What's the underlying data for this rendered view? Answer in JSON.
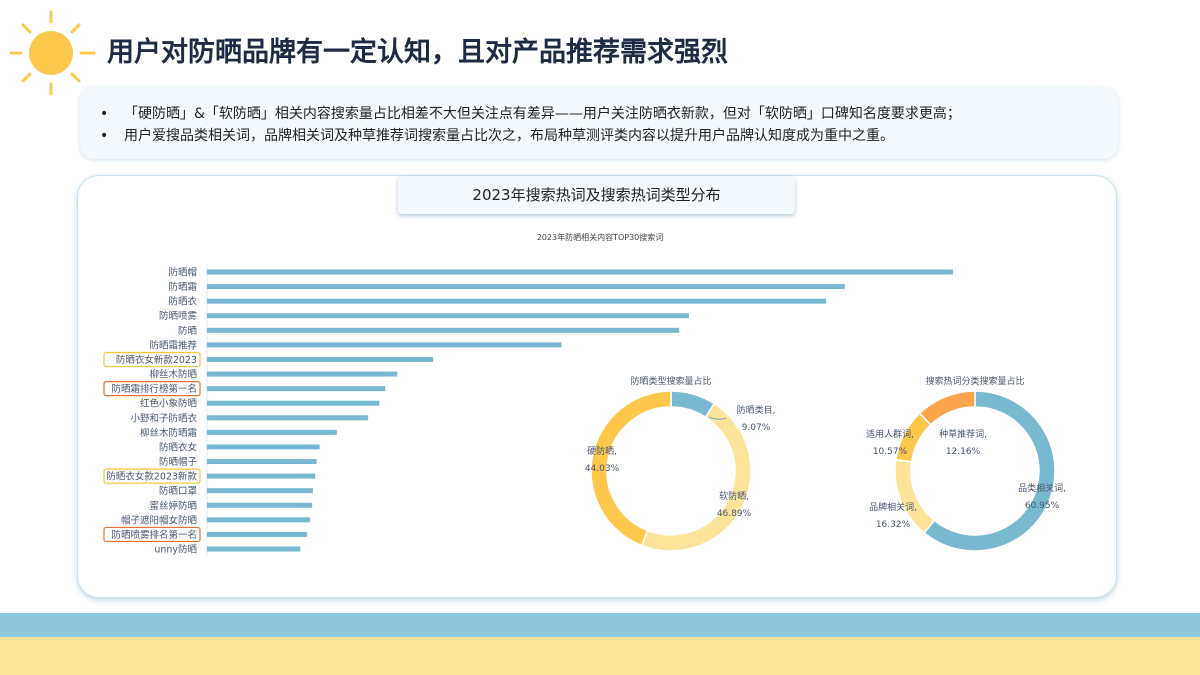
{
  "header": {
    "title": "用户对防晒品牌有一定认知，且对产品推荐需求强烈"
  },
  "summary": {
    "points": [
      "「硬防晒」&「软防晒」相关内容搜索量占比相差不大但关注点有差异——用户关注防晒衣新款，但对「软防晒」口碑知名度要求更高；",
      "用户爱搜品类相关词，品牌相关词及种草推荐词搜索量占比次之，布局种草测评类内容以提升用户品牌认知度成为重中之重。"
    ]
  },
  "panel": {
    "title": "2023年搜索热词及搜索热词类型分布"
  },
  "colors": {
    "bar": "#79b8d1",
    "blue": "#79b8d1",
    "light": "#fee39b",
    "yellow": "#fec84d",
    "orange": "#fda54a",
    "highlight_yellow": "#f6c544",
    "highlight_orange": "#e0733a"
  },
  "chart_data": [
    {
      "type": "bar",
      "orientation": "horizontal",
      "title": "2023年防晒相关内容TOP30搜索词",
      "value_unit": "relative index (top=100)",
      "categories": [
        "防晒帽",
        "防晒霜",
        "防晒衣",
        "防晒喷雾",
        "防晒",
        "防晒霜推荐",
        "防晒衣女新款2023",
        "柳丝木防晒",
        "防晒霜排行榜第一名",
        "红色小象防晒",
        "小野和子防晒衣",
        "柳丝木防晒霜",
        "防晒衣女",
        "防晒帽子",
        "防晒衣女款2023新款",
        "防晒口罩",
        "蜜丝婷防晒",
        "帽子遮阳帽女防晒",
        "防晒喷雾排名第一名",
        "unny防晒"
      ],
      "values": [
        100,
        85.5,
        83,
        64.6,
        63.3,
        47.5,
        30.3,
        25.5,
        23.9,
        23.1,
        21.6,
        17.4,
        15.1,
        14.7,
        14.5,
        14.2,
        14.1,
        13.8,
        13.4,
        12.5
      ],
      "highlighted": {
        "防晒衣女新款2023": "yellow",
        "防晒霜排行榜第一名": "orange",
        "防晒衣女款2023新款": "yellow",
        "防晒喷雾排名第一名": "orange"
      }
    },
    {
      "type": "pie",
      "donut": true,
      "title": "防晒类型搜索量占比",
      "slices": [
        {
          "label": "防晒类目,",
          "value": 9.07,
          "pct": "9.07%",
          "color": "#79b8d1"
        },
        {
          "label": "软防晒,",
          "value": 46.89,
          "pct": "46.89%",
          "color": "#fee39b"
        },
        {
          "label": "硬防晒,",
          "value": 44.03,
          "pct": "44.03%",
          "color": "#fec84d"
        }
      ]
    },
    {
      "type": "pie",
      "donut": true,
      "title": "搜索热词分类搜索量占比",
      "slices": [
        {
          "label": "品类相关词,",
          "value": 60.95,
          "pct": "60.95%",
          "color": "#79b8d1"
        },
        {
          "label": "品牌相关词,",
          "value": 16.32,
          "pct": "16.32%",
          "color": "#fee39b"
        },
        {
          "label": "适用人群词,",
          "value": 10.57,
          "pct": "10.57%",
          "color": "#fec84d"
        },
        {
          "label": "种草推荐词,",
          "value": 12.16,
          "pct": "12.16%",
          "color": "#fda54a"
        }
      ]
    }
  ]
}
